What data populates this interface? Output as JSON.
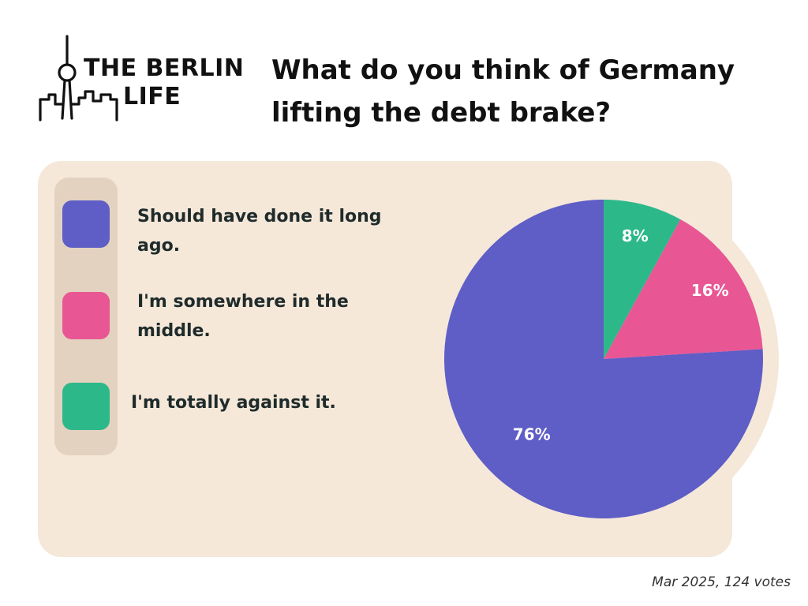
{
  "brand": {
    "line1": "THE BERLIN",
    "line2": "LIFE",
    "icon": "berlin-skyline-tv-tower-icon"
  },
  "title": "What do you think of Germany lifting the debt brake?",
  "footer": "Mar 2025, 124 votes",
  "colors": {
    "panel": "#f5e8d9",
    "legend_bar": "#e3d2bf",
    "long_ago": "#5f5dc6",
    "middle": "#e85694",
    "against": "#2db88a"
  },
  "chart_data": {
    "type": "pie",
    "title": "What do you think of Germany lifting the debt brake?",
    "categories": [
      "Should have done it long ago.",
      "I'm somewhere in the middle.",
      "I'm totally against it."
    ],
    "values": [
      76,
      16,
      8
    ],
    "labels": [
      "76%",
      "16%",
      "8%"
    ],
    "colors": [
      "#5f5dc6",
      "#e85694",
      "#2db88a"
    ],
    "legend_position": "left",
    "start": "12 o'clock, counter-clockwise",
    "order_clockwise": [
      "I'm totally against it.",
      "I'm somewhere in the middle.",
      "Should have done it long ago."
    ]
  }
}
